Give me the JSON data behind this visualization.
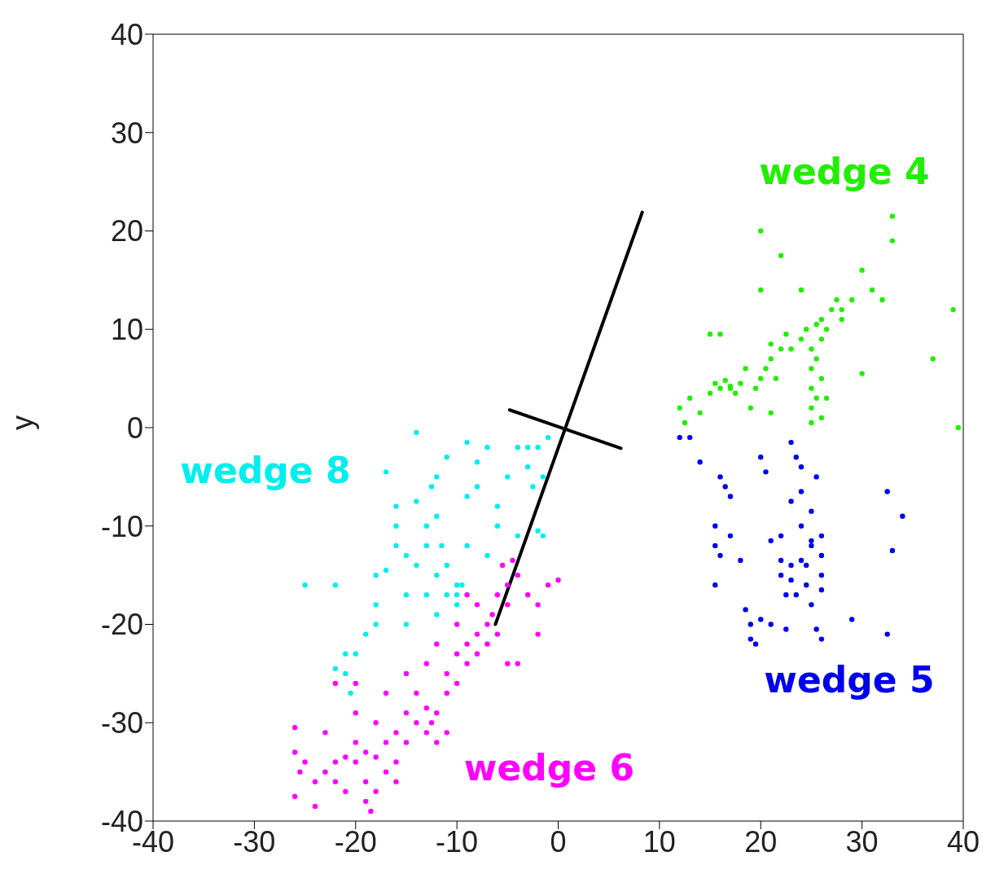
{
  "chart_data": {
    "type": "scatter",
    "ylabel": "y",
    "xlim": [
      -40,
      40
    ],
    "ylim": [
      -40,
      40
    ],
    "xticks": [
      -40,
      -30,
      -20,
      -10,
      0,
      10,
      20,
      30,
      40
    ],
    "yticks": [
      -40,
      -30,
      -20,
      -10,
      0,
      10,
      20,
      30,
      40
    ],
    "marker": "circle",
    "series": [
      {
        "name": "wedge 4",
        "color": "#22ee00",
        "x": [
          12,
          12.5,
          13,
          14,
          15,
          15.5,
          16,
          16.5,
          17,
          17.5,
          18,
          19,
          19.5,
          20,
          20.5,
          21,
          21,
          22,
          22.5,
          23,
          24,
          24.5,
          25,
          25,
          25,
          25,
          25,
          25.5,
          25.5,
          26,
          26,
          26,
          26,
          26.5,
          27,
          27.5,
          28,
          29,
          30,
          31,
          32,
          33,
          33,
          22,
          20,
          24,
          37,
          39,
          39.5,
          15,
          16,
          17,
          21,
          20,
          30,
          28,
          25.5,
          26.5,
          18.5,
          21.5
        ],
        "values": [
          2,
          0.5,
          3,
          1.5,
          3.5,
          4.5,
          4,
          4.8,
          4.2,
          3.5,
          4.5,
          2,
          4,
          5,
          6,
          7,
          8.5,
          8,
          9.5,
          8,
          9,
          10,
          8,
          6,
          4,
          2,
          0.5,
          3,
          7,
          9,
          11,
          5,
          1,
          3,
          12,
          13,
          12,
          13,
          16,
          14,
          13,
          21.5,
          19,
          17.5,
          20,
          14,
          7,
          12,
          0,
          9.5,
          9.5,
          4,
          1.5,
          14,
          5.5,
          11,
          10.5,
          10,
          6,
          5
        ]
      },
      {
        "name": "wedge 5",
        "color": "#0000ee",
        "x": [
          12,
          13,
          14,
          16,
          16.5,
          17,
          15.5,
          15.5,
          16,
          17,
          15.5,
          18,
          18.5,
          19,
          19,
          19.5,
          20,
          21,
          20,
          20.5,
          23,
          23.5,
          24,
          23,
          24,
          24,
          22,
          22,
          22,
          23,
          23,
          23.5,
          24,
          24.5,
          25,
          25,
          26,
          26,
          26,
          26,
          25,
          25.5,
          22.5,
          24.5,
          29,
          32.5,
          33,
          34,
          32.5,
          26,
          21,
          22.5,
          25,
          25.5
        ],
        "values": [
          -1,
          -1,
          -3.5,
          -5,
          -6,
          -7,
          -10,
          -12,
          -13,
          -11,
          -16,
          -13.5,
          -18.5,
          -20,
          -21.5,
          -22,
          -19.5,
          -20,
          -3,
          -4.5,
          -1.5,
          -3,
          -4,
          -7.5,
          -6.5,
          -10,
          -11,
          -13.5,
          -15,
          -14,
          -15.5,
          -17,
          -13.5,
          -14,
          -12,
          -11.5,
          -11,
          -13,
          -15,
          -16.5,
          -18,
          -20.5,
          -20.5,
          -16,
          -19.5,
          -6.5,
          -12.5,
          -9,
          -21,
          -21.5,
          -11.5,
          -17,
          -8.5,
          -5
        ]
      },
      {
        "name": "wedge 6",
        "color": "#ff00ff",
        "x": [
          -26,
          -26,
          -25.5,
          -26,
          -25,
          -24,
          -24,
          -23,
          -22,
          -22,
          -21,
          -20,
          -20,
          -19,
          -19,
          -19,
          -18.5,
          -18,
          -18,
          -17,
          -17,
          -16,
          -16,
          -15,
          -15,
          -14,
          -14,
          -13,
          -13,
          -12.5,
          -12,
          -12,
          -11,
          -11,
          -10,
          -10,
          -9,
          -9,
          -8,
          -8,
          -7,
          -7,
          -6.5,
          -6,
          -6,
          -5,
          -5,
          -5.5,
          -4.5,
          -4,
          -3,
          -2,
          -1,
          0,
          -2,
          -4,
          -5,
          -8,
          -9,
          -10,
          -12,
          -13,
          -15,
          -17,
          -20,
          -22,
          -18,
          -20,
          -23,
          -21,
          -11,
          -16
        ],
        "values": [
          -30.5,
          -33,
          -35,
          -37.5,
          -34,
          -36,
          -38.5,
          -35,
          -34,
          -36,
          -33.5,
          -34,
          -32,
          -33,
          -36,
          -38,
          -39,
          -37,
          -33.5,
          -32,
          -35,
          -34,
          -31,
          -29,
          -32,
          -30,
          -27,
          -31,
          -28.5,
          -30,
          -29,
          -32,
          -27,
          -25,
          -26,
          -23,
          -22,
          -24,
          -21,
          -23,
          -20,
          -22,
          -19,
          -21,
          -17,
          -16,
          -18,
          -14,
          -13.5,
          -15,
          -17,
          -18,
          -16,
          -15.5,
          -21,
          -24,
          -24,
          -18,
          -17,
          -20,
          -22,
          -24,
          -25,
          -27,
          -26,
          -26,
          -30,
          -29,
          -31,
          -37,
          -31,
          -36
        ]
      },
      {
        "name": "wedge 8",
        "color": "#00eeee",
        "x": [
          -25,
          -22,
          -21,
          -22,
          -20.5,
          -21,
          -19,
          -18,
          -18,
          -17,
          -17,
          -16,
          -16,
          -15,
          -15,
          -14,
          -14,
          -14,
          -13,
          -13,
          -13,
          -12,
          -12,
          -12,
          -12,
          -11,
          -11,
          -11,
          -10,
          -10,
          -10,
          -9.5,
          -9,
          -9,
          -9,
          -8,
          -8,
          -7,
          -7,
          -6,
          -6,
          -5,
          -4,
          -4,
          -3,
          -3,
          -2.5,
          -2,
          -1,
          -1.5,
          -2,
          -1.5,
          -16,
          -18,
          -20,
          -15,
          -11.5,
          -12.5
        ],
        "values": [
          -16,
          -16,
          -23,
          -24.5,
          -27,
          -25,
          -21,
          -20,
          -15,
          -14.5,
          -4.5,
          -8,
          -12,
          -13,
          -17,
          -14,
          -0.5,
          -7.5,
          -10,
          -12,
          -17,
          -19,
          -15,
          -9,
          -5,
          -3,
          -14,
          -17,
          -16,
          -17,
          -18,
          -16,
          -12,
          -7,
          -1.5,
          -3.5,
          -6,
          -2,
          -13,
          -8,
          -10,
          -5,
          -11,
          -2,
          -2,
          -4,
          -6,
          -2,
          -1,
          -5,
          -10.5,
          -11,
          -10,
          -18,
          -23,
          -20,
          -12,
          -6
        ]
      },
      {
        "type": "line",
        "marker": "none",
        "color": "#000000",
        "x": [
          -6.2,
          8.3
        ],
        "values": [
          -20,
          21.9
        ]
      },
      {
        "type": "line",
        "marker": "none",
        "color": "#000000",
        "x": [
          -4.8,
          6.2
        ],
        "values": [
          1.8,
          -2.1
        ]
      }
    ],
    "line_style": "solid"
  }
}
